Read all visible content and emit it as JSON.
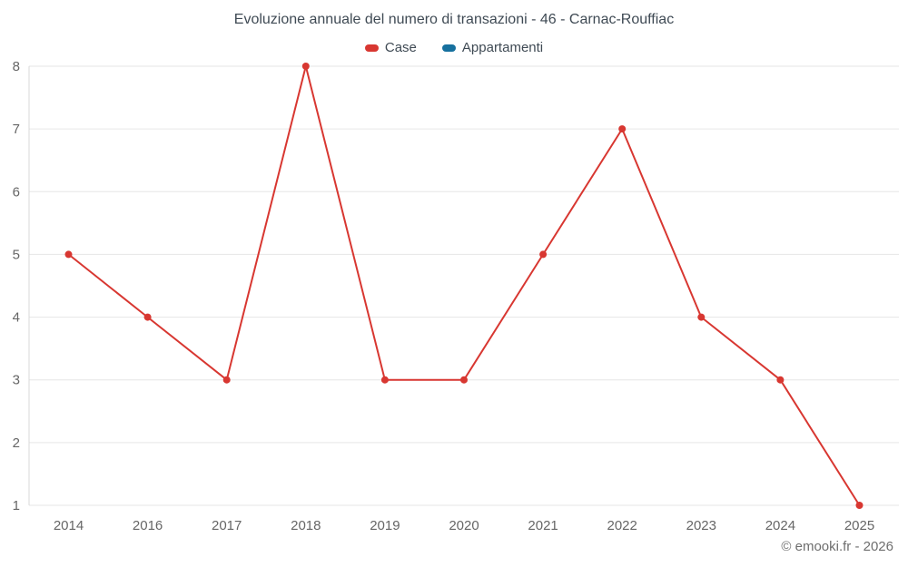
{
  "chart_data": {
    "type": "line",
    "title": "Evoluzione annuale del numero di transazioni - 46 - Carnac-Rouffiac",
    "categories": [
      "2014",
      "2016",
      "2017",
      "2018",
      "2019",
      "2020",
      "2021",
      "2022",
      "2023",
      "2024",
      "2025"
    ],
    "series": [
      {
        "name": "Case",
        "color": "#d83731",
        "values": [
          5,
          4,
          3,
          8,
          3,
          3,
          5,
          7,
          4,
          3,
          1
        ]
      },
      {
        "name": "Appartamenti",
        "color": "#16709e",
        "values": []
      }
    ],
    "xlabel": "",
    "ylabel": "",
    "ylim": [
      1,
      8
    ],
    "yticks": [
      1,
      2,
      3,
      4,
      5,
      6,
      7,
      8
    ],
    "grid": true,
    "grid_color": "#e6e6e6",
    "axis_line_color": "#d8d8d8",
    "axis_label_color": "#666666",
    "legend_position": "top",
    "marker": "circle"
  },
  "footer": {
    "text": "© emooki.fr - 2026"
  }
}
